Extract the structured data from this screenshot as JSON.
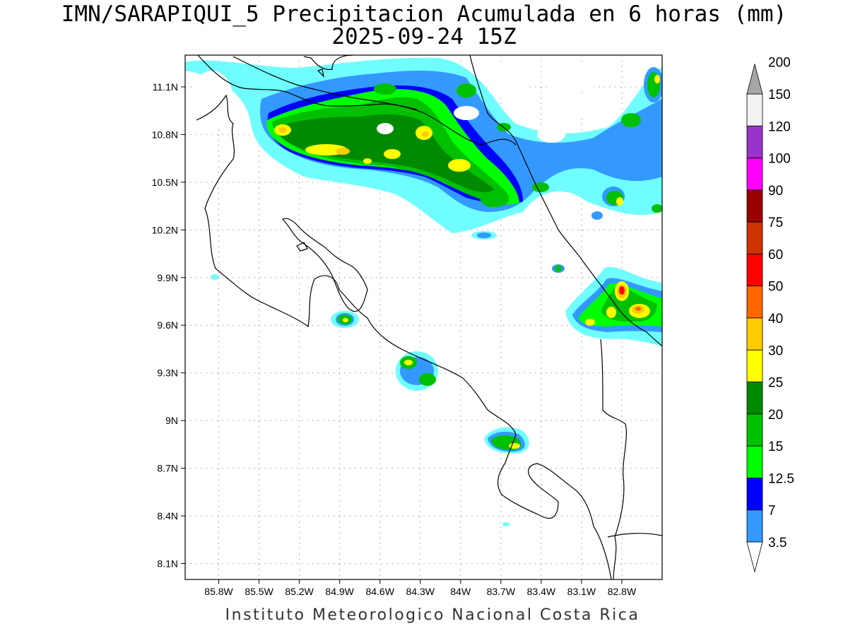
{
  "title": {
    "line1": "IMN/SARAPIQUI_5 Precipitacion Acumulada en 6 horas (mm)",
    "line2": "2025-09-24 15Z"
  },
  "footer": "Instituto Meteorologico Nacional Costa Rica",
  "map": {
    "lon_range": [
      -86.05,
      -82.5
    ],
    "lat_range": [
      8.0,
      11.3
    ],
    "x_ticks": [
      "85.8W",
      "85.5W",
      "85.2W",
      "84.9W",
      "84.6W",
      "84.3W",
      "84W",
      "83.7W",
      "83.4W",
      "83.1W",
      "82.8W"
    ],
    "y_ticks": [
      "11.1N",
      "10.8N",
      "10.5N",
      "10.2N",
      "9.9N",
      "9.6N",
      "9.3N",
      "9N",
      "8.7N",
      "8.4N",
      "8.1N"
    ],
    "grid": true
  },
  "colorbar": {
    "labels": [
      "3.5",
      "7",
      "12.5",
      "15",
      "20",
      "25",
      "30",
      "40",
      "50",
      "60",
      "75",
      "90",
      "100",
      "120",
      "150",
      "200"
    ],
    "colors": [
      "#6ffdff",
      "#3399ff",
      "#0000ff",
      "#00ff00",
      "#00c000",
      "#008a00",
      "#ffff00",
      "#ffcc00",
      "#ff6600",
      "#ff0000",
      "#cc3300",
      "#990000",
      "#ff00ff",
      "#9933cc",
      "#f2f2f2",
      "#a6a6a6"
    ]
  },
  "precip_cells": [
    {
      "region": "North Caribbean plains",
      "max_level": "30-40",
      "base_level": "3.5-12.5"
    },
    {
      "region": "Caribbean coast near 9.7N 82.8W",
      "max_level": "60-75"
    },
    {
      "region": "Pacific coast near 9.6N 84.8W",
      "max_level": "30-40"
    },
    {
      "region": "Central Pacific near 9.4N 84.3W",
      "max_level": "30-40"
    },
    {
      "region": "South Pacific near 8.8N 83.6W",
      "max_level": "30-40"
    },
    {
      "region": "Northeast near 10.4N 82.9W",
      "max_level": "30-40"
    }
  ]
}
